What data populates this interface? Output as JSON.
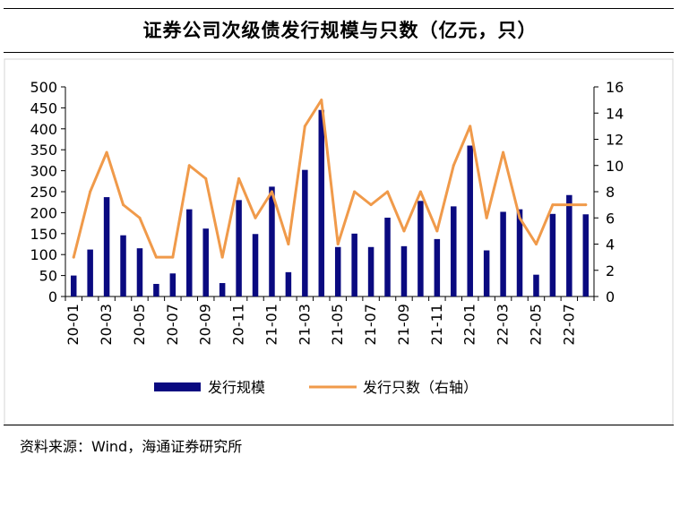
{
  "title": "证券公司次级债发行规模与只数（亿元，只）",
  "source": "资料来源：Wind，海通证券研究所",
  "colors": {
    "bar": "#0a0a80",
    "line": "#f09a4a"
  },
  "chart_data": {
    "type": "bar+line",
    "categories": [
      "20-01",
      "20-02",
      "20-03",
      "20-04",
      "20-05",
      "20-06",
      "20-07",
      "20-08",
      "20-09",
      "20-10",
      "20-11",
      "20-12",
      "21-01",
      "21-02",
      "21-03",
      "21-04",
      "21-05",
      "21-06",
      "21-07",
      "21-08",
      "21-09",
      "21-10",
      "21-11",
      "21-12",
      "22-01",
      "22-02",
      "22-03",
      "22-04",
      "22-05",
      "22-06",
      "22-07",
      "22-08"
    ],
    "x_tick_labels": [
      "20-01",
      "20-03",
      "20-05",
      "20-07",
      "20-09",
      "20-11",
      "21-01",
      "21-03",
      "21-05",
      "21-07",
      "21-09",
      "21-11",
      "22-01",
      "22-03",
      "22-05",
      "22-07"
    ],
    "series": [
      {
        "name": "发行规模",
        "type": "bar",
        "axis": "left",
        "values": [
          50,
          112,
          237,
          146,
          115,
          30,
          55,
          208,
          162,
          32,
          230,
          149,
          262,
          58,
          302,
          445,
          118,
          150,
          118,
          188,
          120,
          228,
          137,
          215,
          360,
          110,
          202,
          208,
          52,
          197,
          242,
          196
        ]
      },
      {
        "name": "发行只数（右轴）",
        "type": "line",
        "axis": "right",
        "values": [
          3,
          8,
          11,
          7,
          6,
          3,
          3,
          10,
          9,
          3,
          9,
          6,
          8,
          4,
          13,
          15,
          4,
          8,
          7,
          8,
          5,
          8,
          5,
          10,
          13,
          6,
          11,
          6,
          4,
          7,
          7,
          7
        ]
      }
    ],
    "y_left": {
      "min": 0,
      "max": 500,
      "ticks": [
        "0",
        "50",
        "100",
        "150",
        "200",
        "250",
        "300",
        "350",
        "400",
        "450",
        "500"
      ]
    },
    "y_right": {
      "min": 0,
      "max": 16,
      "ticks": [
        "0",
        "2",
        "4",
        "6",
        "8",
        "10",
        "12",
        "14",
        "16"
      ]
    },
    "legend": [
      {
        "label": "发行规模",
        "kind": "bar"
      },
      {
        "label": "发行只数（右轴）",
        "kind": "line"
      }
    ],
    "legend_position": "bottom"
  }
}
